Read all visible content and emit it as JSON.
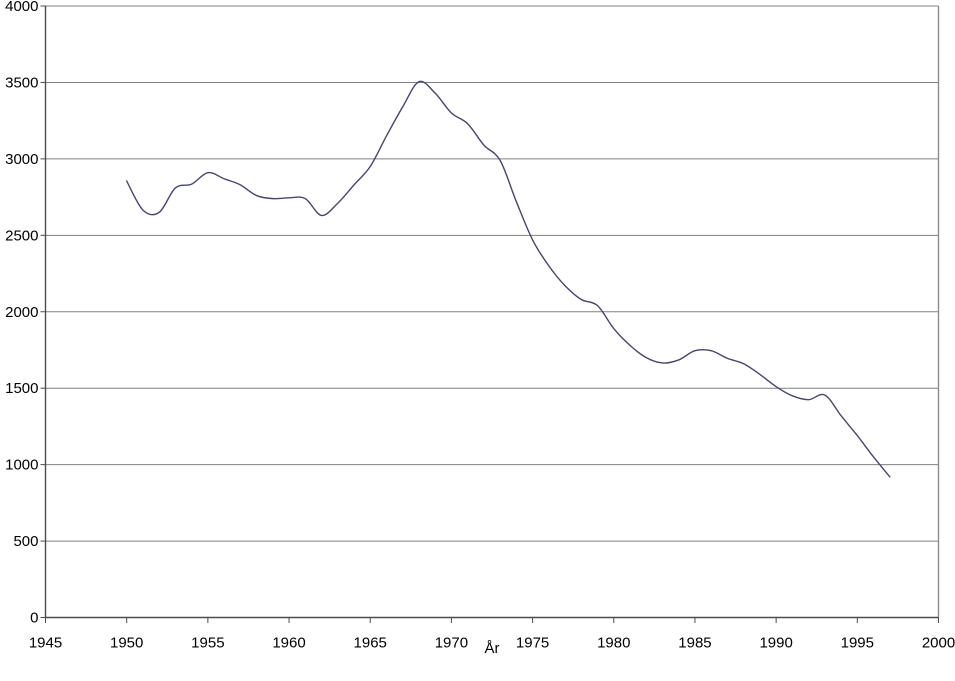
{
  "chart_data": {
    "type": "line",
    "title": "",
    "xlabel": "År",
    "ylabel": "",
    "xlim": [
      1945,
      2000
    ],
    "ylim": [
      0,
      4000
    ],
    "x_ticks": [
      1945,
      1950,
      1955,
      1960,
      1965,
      1970,
      1975,
      1980,
      1985,
      1990,
      1995,
      2000
    ],
    "y_ticks": [
      0,
      500,
      1000,
      1500,
      2000,
      2500,
      3000,
      3500,
      4000
    ],
    "grid": "horizontal-on",
    "legend": "none",
    "series": [
      {
        "name": "",
        "x": [
          1950,
          1951,
          1952,
          1953,
          1954,
          1955,
          1956,
          1957,
          1958,
          1959,
          1960,
          1961,
          1962,
          1963,
          1964,
          1965,
          1966,
          1967,
          1968,
          1969,
          1970,
          1971,
          1972,
          1973,
          1974,
          1975,
          1976,
          1977,
          1978,
          1979,
          1980,
          1981,
          1982,
          1983,
          1984,
          1985,
          1986,
          1987,
          1988,
          1989,
          1990,
          1991,
          1992,
          1993,
          1994,
          1995,
          1996,
          1997
        ],
        "values": [
          2855,
          2665,
          2650,
          2810,
          2835,
          2910,
          2870,
          2830,
          2760,
          2740,
          2745,
          2740,
          2630,
          2710,
          2830,
          2950,
          3150,
          3340,
          3505,
          3430,
          3300,
          3230,
          3090,
          2990,
          2720,
          2470,
          2300,
          2170,
          2080,
          2040,
          1890,
          1780,
          1700,
          1665,
          1685,
          1745,
          1745,
          1695,
          1660,
          1590,
          1510,
          1450,
          1425,
          1455,
          1320,
          1190,
          1050,
          920
        ]
      }
    ]
  },
  "colors": {
    "background": "#ffffff",
    "line": "#46466e",
    "gridline": "#808080",
    "axis": "#4d4d4d",
    "border": "#8c8c8c",
    "text": "#000000"
  }
}
